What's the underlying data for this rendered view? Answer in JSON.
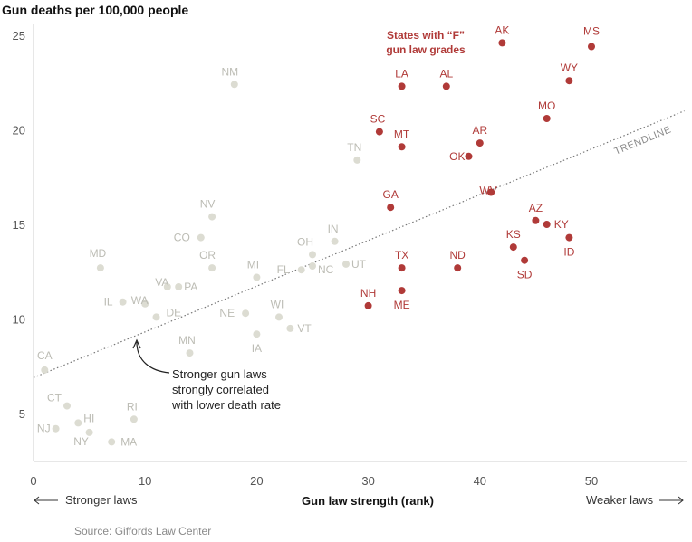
{
  "chart_data": {
    "type": "scatter",
    "title": "Gun deaths per 100,000 people",
    "xlabel": "Gun law strength (rank)",
    "x_direction_left": "Stronger laws",
    "x_direction_right": "Weaker laws",
    "xlim": [
      0,
      58
    ],
    "ylim": [
      2,
      26
    ],
    "x_ticks": [
      0,
      10,
      20,
      30,
      40,
      50
    ],
    "y_ticks": [
      5,
      10,
      15,
      20,
      25
    ],
    "legend": "States with “F” gun law grades",
    "trendline": {
      "label": "TRENDLINE",
      "start": [
        0,
        6.9
      ],
      "end": [
        58,
        21
      ]
    },
    "annotation": {
      "lines": [
        "Stronger gun laws",
        "strongly correlated",
        "with lower death rate"
      ],
      "point": [
        9,
        8.7
      ]
    },
    "source": "Source: Giffords Law Center",
    "colors": {
      "f_grade": "#b03a38",
      "other": "#dcdcd2",
      "other_label": "#bcbcb4"
    },
    "points": [
      {
        "state": "CA",
        "x": 1,
        "y": 7.3,
        "grade_f": false
      },
      {
        "state": "NJ",
        "x": 2,
        "y": 4.2,
        "grade_f": false
      },
      {
        "state": "CT",
        "x": 3,
        "y": 5.4,
        "grade_f": false
      },
      {
        "state": "HI",
        "x": 4,
        "y": 4.5,
        "grade_f": false
      },
      {
        "state": "NY",
        "x": 5,
        "y": 4.0,
        "grade_f": false
      },
      {
        "state": "MD",
        "x": 6,
        "y": 12.7,
        "grade_f": false
      },
      {
        "state": "MA",
        "x": 7,
        "y": 3.5,
        "grade_f": false
      },
      {
        "state": "IL",
        "x": 8,
        "y": 10.9,
        "grade_f": false
      },
      {
        "state": "RI",
        "x": 9,
        "y": 4.7,
        "grade_f": false
      },
      {
        "state": "WA",
        "x": 10,
        "y": 10.8,
        "grade_f": false
      },
      {
        "state": "DE",
        "x": 11,
        "y": 10.1,
        "grade_f": false
      },
      {
        "state": "VA",
        "x": 12,
        "y": 11.7,
        "grade_f": false
      },
      {
        "state": "PA",
        "x": 13,
        "y": 11.7,
        "grade_f": false
      },
      {
        "state": "MN",
        "x": 14,
        "y": 8.2,
        "grade_f": false
      },
      {
        "state": "CO",
        "x": 15,
        "y": 14.3,
        "grade_f": false
      },
      {
        "state": "OR",
        "x": 16,
        "y": 12.7,
        "grade_f": false
      },
      {
        "state": "NV",
        "x": 16,
        "y": 15.4,
        "grade_f": false
      },
      {
        "state": "NM",
        "x": 18,
        "y": 22.4,
        "grade_f": false
      },
      {
        "state": "NE",
        "x": 19,
        "y": 10.3,
        "grade_f": false
      },
      {
        "state": "MI",
        "x": 20,
        "y": 12.2,
        "grade_f": false
      },
      {
        "state": "IA",
        "x": 20,
        "y": 9.2,
        "grade_f": false
      },
      {
        "state": "WI",
        "x": 22,
        "y": 10.1,
        "grade_f": false
      },
      {
        "state": "VT",
        "x": 23,
        "y": 9.5,
        "grade_f": false
      },
      {
        "state": "FL",
        "x": 24,
        "y": 12.6,
        "grade_f": false
      },
      {
        "state": "NC",
        "x": 25,
        "y": 12.8,
        "grade_f": false
      },
      {
        "state": "OH",
        "x": 25,
        "y": 13.4,
        "grade_f": false
      },
      {
        "state": "IN",
        "x": 27,
        "y": 14.1,
        "grade_f": false
      },
      {
        "state": "UT",
        "x": 28,
        "y": 12.9,
        "grade_f": false
      },
      {
        "state": "TN",
        "x": 29,
        "y": 18.4,
        "grade_f": false
      },
      {
        "state": "NH",
        "x": 30,
        "y": 10.7,
        "grade_f": true
      },
      {
        "state": "SC",
        "x": 31,
        "y": 19.9,
        "grade_f": true
      },
      {
        "state": "GA",
        "x": 32,
        "y": 15.9,
        "grade_f": true
      },
      {
        "state": "LA",
        "x": 33,
        "y": 22.3,
        "grade_f": true
      },
      {
        "state": "MT",
        "x": 33,
        "y": 19.1,
        "grade_f": true
      },
      {
        "state": "TX",
        "x": 33,
        "y": 12.7,
        "grade_f": true
      },
      {
        "state": "ME",
        "x": 33,
        "y": 11.5,
        "grade_f": true
      },
      {
        "state": "AL",
        "x": 37,
        "y": 22.3,
        "grade_f": true
      },
      {
        "state": "ND",
        "x": 38,
        "y": 12.7,
        "grade_f": true
      },
      {
        "state": "OK",
        "x": 39,
        "y": 18.6,
        "grade_f": true
      },
      {
        "state": "AR",
        "x": 40,
        "y": 19.3,
        "grade_f": true
      },
      {
        "state": "WV",
        "x": 41,
        "y": 16.7,
        "grade_f": true
      },
      {
        "state": "AK",
        "x": 42,
        "y": 24.6,
        "grade_f": true
      },
      {
        "state": "KS",
        "x": 43,
        "y": 13.8,
        "grade_f": true
      },
      {
        "state": "SD",
        "x": 44,
        "y": 13.1,
        "grade_f": true
      },
      {
        "state": "AZ",
        "x": 45,
        "y": 15.2,
        "grade_f": true
      },
      {
        "state": "KY",
        "x": 46,
        "y": 15.0,
        "grade_f": true
      },
      {
        "state": "MO",
        "x": 46,
        "y": 20.6,
        "grade_f": true
      },
      {
        "state": "ID",
        "x": 48,
        "y": 14.3,
        "grade_f": true
      },
      {
        "state": "WY",
        "x": 48,
        "y": 22.6,
        "grade_f": true
      },
      {
        "state": "MS",
        "x": 50,
        "y": 24.4,
        "grade_f": true
      }
    ]
  }
}
